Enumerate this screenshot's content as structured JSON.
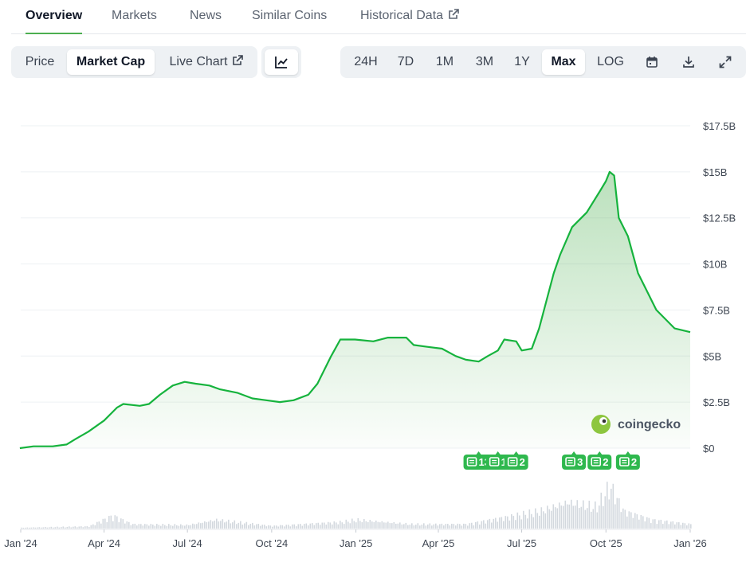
{
  "tabs": [
    {
      "label": "Overview",
      "active": true
    },
    {
      "label": "Markets"
    },
    {
      "label": "News"
    },
    {
      "label": "Similar Coins"
    },
    {
      "label": "Historical Data",
      "external": true
    }
  ],
  "metric_toggle": [
    {
      "label": "Price"
    },
    {
      "label": "Market Cap",
      "active": true
    },
    {
      "label": "Live Chart",
      "external": true
    }
  ],
  "chart_type_icon": "line-chart-icon",
  "ranges": [
    {
      "label": "24H"
    },
    {
      "label": "7D"
    },
    {
      "label": "1M"
    },
    {
      "label": "3M"
    },
    {
      "label": "1Y"
    },
    {
      "label": "Max",
      "active": true
    },
    {
      "label": "LOG"
    }
  ],
  "tool_icons": [
    "calendar-icon",
    "download-icon",
    "fullscreen-icon"
  ],
  "colors": {
    "line": "#16b33d",
    "fill": "#4caf50",
    "news": "#2fb84e",
    "grid": "#eef0f3"
  },
  "watermark": "coingecko",
  "chart_data": {
    "type": "area",
    "y_unit": "USD",
    "ylim": [
      0,
      17.5
    ],
    "y_ticks": [
      0,
      2.5,
      5,
      7.5,
      10,
      12.5,
      15,
      17.5
    ],
    "y_tick_labels": [
      "$0",
      "$2.5B",
      "$5B",
      "$7.5B",
      "$10B",
      "$12.5B",
      "$15B",
      "$17.5B"
    ],
    "x_tick_labels": [
      "Jan '24",
      "Apr '24",
      "Jul '24",
      "Oct '24",
      "Jan '25",
      "Apr '25",
      "Jul '25",
      "Oct '25",
      "Jan '26"
    ],
    "x_tick_dates": [
      "2024-01-01",
      "2024-04-01",
      "2024-07-01",
      "2024-10-01",
      "2025-01-01",
      "2025-04-01",
      "2025-07-01",
      "2025-10-01",
      "2026-01-01"
    ],
    "grid": true,
    "series": [
      {
        "values_in": "billions USD",
        "points": [
          [
            "2023-12-31",
            0.0
          ],
          [
            "2024-01-15",
            0.1
          ],
          [
            "2024-02-05",
            0.1
          ],
          [
            "2024-02-20",
            0.2
          ],
          [
            "2024-03-01",
            0.5
          ],
          [
            "2024-03-15",
            0.9
          ],
          [
            "2024-04-01",
            1.5
          ],
          [
            "2024-04-15",
            2.2
          ],
          [
            "2024-04-22",
            2.4
          ],
          [
            "2024-05-10",
            2.3
          ],
          [
            "2024-05-20",
            2.4
          ],
          [
            "2024-06-01",
            2.9
          ],
          [
            "2024-06-15",
            3.4
          ],
          [
            "2024-06-28",
            3.6
          ],
          [
            "2024-07-10",
            3.5
          ],
          [
            "2024-07-25",
            3.4
          ],
          [
            "2024-08-05",
            3.2
          ],
          [
            "2024-08-25",
            3.0
          ],
          [
            "2024-09-10",
            2.7
          ],
          [
            "2024-09-25",
            2.6
          ],
          [
            "2024-10-10",
            2.5
          ],
          [
            "2024-10-25",
            2.6
          ],
          [
            "2024-11-10",
            2.9
          ],
          [
            "2024-11-20",
            3.5
          ],
          [
            "2024-12-05",
            5.0
          ],
          [
            "2024-12-15",
            5.9
          ],
          [
            "2024-12-31",
            5.9
          ],
          [
            "2025-01-20",
            5.8
          ],
          [
            "2025-02-05",
            6.0
          ],
          [
            "2025-02-25",
            6.0
          ],
          [
            "2025-03-05",
            5.6
          ],
          [
            "2025-03-20",
            5.5
          ],
          [
            "2025-04-05",
            5.4
          ],
          [
            "2025-04-20",
            5.0
          ],
          [
            "2025-05-01",
            4.8
          ],
          [
            "2025-05-15",
            4.7
          ],
          [
            "2025-05-25",
            5.0
          ],
          [
            "2025-06-05",
            5.3
          ],
          [
            "2025-06-12",
            5.9
          ],
          [
            "2025-06-25",
            5.8
          ],
          [
            "2025-07-01",
            5.3
          ],
          [
            "2025-07-12",
            5.4
          ],
          [
            "2025-07-20",
            6.5
          ],
          [
            "2025-07-28",
            8.0
          ],
          [
            "2025-08-05",
            9.5
          ],
          [
            "2025-08-12",
            10.5
          ],
          [
            "2025-08-25",
            12.0
          ],
          [
            "2025-09-10",
            12.8
          ],
          [
            "2025-09-25",
            14.0
          ],
          [
            "2025-10-01",
            14.5
          ],
          [
            "2025-10-05",
            15.0
          ],
          [
            "2025-10-10",
            14.8
          ],
          [
            "2025-10-15",
            12.5
          ],
          [
            "2025-10-25",
            11.5
          ],
          [
            "2025-11-05",
            9.5
          ],
          [
            "2025-11-15",
            8.5
          ],
          [
            "2025-11-25",
            7.5
          ],
          [
            "2025-12-05",
            7.0
          ],
          [
            "2025-12-15",
            6.5
          ],
          [
            "2026-01-01",
            6.3
          ]
        ]
      }
    ],
    "volume_series": {
      "points": [
        [
          "2024-01-01",
          0.02
        ],
        [
          "2024-03-15",
          0.05
        ],
        [
          "2024-04-10",
          0.3
        ],
        [
          "2024-05-01",
          0.1
        ],
        [
          "2024-07-01",
          0.08
        ],
        [
          "2024-08-01",
          0.2
        ],
        [
          "2024-10-01",
          0.06
        ],
        [
          "2024-12-15",
          0.15
        ],
        [
          "2025-01-01",
          0.2
        ],
        [
          "2025-03-01",
          0.1
        ],
        [
          "2025-05-01",
          0.1
        ],
        [
          "2025-07-20",
          0.4
        ],
        [
          "2025-08-20",
          0.6
        ],
        [
          "2025-09-20",
          0.5
        ],
        [
          "2025-10-05",
          1.0
        ],
        [
          "2025-10-20",
          0.4
        ],
        [
          "2025-11-20",
          0.2
        ],
        [
          "2026-01-01",
          0.1
        ]
      ]
    },
    "news_badges": [
      {
        "date": "2025-05-15",
        "count": "13"
      },
      {
        "date": "2025-06-05",
        "count": "1"
      },
      {
        "date": "2025-06-25",
        "count": "2"
      },
      {
        "date": "2025-08-27",
        "count": "3"
      },
      {
        "date": "2025-09-24",
        "count": "2"
      },
      {
        "date": "2025-10-25",
        "count": "2"
      }
    ]
  }
}
